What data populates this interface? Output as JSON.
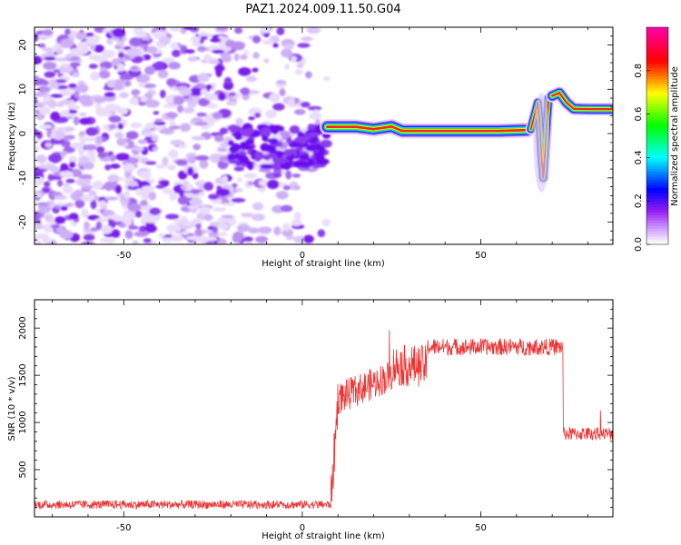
{
  "chart_data": [
    {
      "type": "heatmap",
      "title": "PAZ1.2024.009.11.50.G04",
      "xlabel": "Height of straight line (km)",
      "ylabel": "Frequency (Hz)",
      "xlim": [
        -75,
        87
      ],
      "ylim": [
        -25,
        24
      ],
      "x_ticks": [
        -50,
        0,
        50
      ],
      "y_ticks": [
        -20,
        -10,
        0,
        10,
        20
      ],
      "colorbar": {
        "label": "Normalized spectral amplitude",
        "range": [
          0,
          1
        ],
        "ticks": [
          "0.0",
          "0.2",
          "0.4",
          "0.6",
          "0.8"
        ],
        "colors": [
          "#ffffff",
          "#a020f0",
          "#0000ff",
          "#00ffff",
          "#00ff00",
          "#ffff00",
          "#ff0000",
          "#ff00a0"
        ]
      },
      "description_regions": {
        "noise_region_x": [
          -75,
          7
        ],
        "trace_segments": [
          {
            "x": [
              7,
              63
            ],
            "freq": [
              1.5,
              0.8
            ]
          },
          {
            "x": [
              64,
              70
            ],
            "freq": [
              5,
              -10
            ]
          },
          {
            "x": [
              70,
              87
            ],
            "freq": [
              9,
              5.5
            ]
          }
        ]
      }
    },
    {
      "type": "line",
      "xlabel": "Height of straight line (km)",
      "ylabel": "SNR (10 * v/v)",
      "xlim": [
        -75,
        87
      ],
      "ylim": [
        0,
        2300
      ],
      "x_ticks": [
        -50,
        0,
        50
      ],
      "y_ticks": [
        500,
        1000,
        1500,
        2000
      ],
      "line_color": "#ee3333",
      "segments": [
        {
          "x": [
            -75,
            8
          ],
          "mean": 130,
          "noise": 45
        },
        {
          "x": [
            8,
            10
          ],
          "mean": 700,
          "noise": 250
        },
        {
          "x": [
            10,
            25
          ],
          "mean": 1250,
          "noise": 170,
          "ramp_to": 1500
        },
        {
          "x": [
            25,
            35
          ],
          "mean": 1600,
          "noise": 220
        },
        {
          "x": [
            35,
            73
          ],
          "mean": 1800,
          "noise": 90
        },
        {
          "x": [
            73,
            87
          ],
          "mean": 880,
          "noise": 70
        }
      ]
    }
  ]
}
